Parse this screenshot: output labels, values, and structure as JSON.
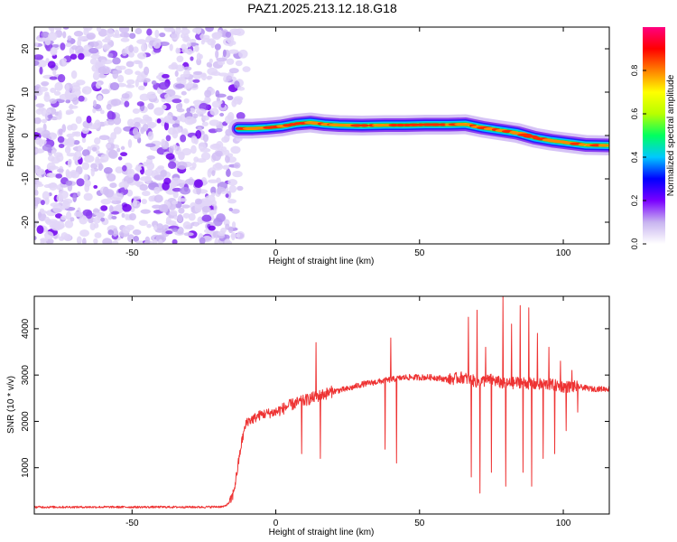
{
  "title": "PAZ1.2025.213.12.18.G18",
  "chart_data": [
    {
      "type": "heatmap",
      "xlabel": "Height of straight line (km)",
      "ylabel": "Frequency (Hz)",
      "xlim": [
        -84,
        116
      ],
      "ylim": [
        -25,
        25
      ],
      "xticks": [
        -50,
        0,
        50,
        100
      ],
      "yticks": [
        -20,
        -10,
        0,
        10,
        20
      ],
      "grid": false,
      "noise_region_x": [
        -84,
        -14
      ],
      "ridge": {
        "x": [
          -13,
          -8,
          -3,
          2,
          7,
          12,
          17,
          22,
          30,
          38,
          45,
          52,
          60,
          66,
          72,
          78,
          84,
          90,
          96,
          102,
          108,
          116
        ],
        "frequency": [
          1.6,
          1.6,
          1.8,
          2.1,
          2.7,
          3.0,
          2.6,
          2.4,
          2.3,
          2.4,
          2.4,
          2.5,
          2.5,
          2.6,
          1.8,
          1.2,
          0.6,
          -0.5,
          -1.2,
          -1.7,
          -2.2,
          -2.3
        ]
      },
      "colorbar": {
        "label": "Normalized spectral amplitude",
        "range": [
          0,
          1
        ],
        "ticks": [
          "0.0",
          "0.2",
          "0.4",
          "0.6",
          "0.8"
        ],
        "colors": [
          "#ffffff",
          "#c8b4f0",
          "#7a00ff",
          "#0000ff",
          "#00c8ff",
          "#00ff60",
          "#b8ff00",
          "#ffff00",
          "#ff8000",
          "#ff0000",
          "#ff0080"
        ]
      }
    },
    {
      "type": "line",
      "xlabel": "Height of straight line (km)",
      "ylabel": "SNR (10 * v/v)",
      "xlim": [
        -84,
        116
      ],
      "ylim": [
        0,
        4700
      ],
      "xticks": [
        -50,
        0,
        50,
        100
      ],
      "yticks": [
        1000,
        2000,
        3000,
        4000
      ],
      "grid": false,
      "color": "#ee3333",
      "x": [
        -84,
        -60,
        -40,
        -25,
        -18,
        -16,
        -15,
        -14,
        -13,
        -12,
        -11,
        -10,
        -8,
        -5,
        0,
        5,
        10,
        15,
        20,
        25,
        30,
        35,
        40,
        45,
        50,
        55,
        60,
        65,
        70,
        75,
        80,
        85,
        90,
        95,
        100,
        105,
        110,
        116
      ],
      "y": [
        150,
        150,
        150,
        150,
        160,
        250,
        400,
        700,
        1100,
        1500,
        1800,
        2000,
        2050,
        2150,
        2200,
        2350,
        2450,
        2550,
        2650,
        2700,
        2800,
        2850,
        2900,
        2950,
        2950,
        2950,
        2900,
        2950,
        2850,
        2900,
        2800,
        2850,
        2800,
        2800,
        2750,
        2750,
        2700,
        2700
      ],
      "spikes": [
        {
          "x": 9,
          "y": 1300
        },
        {
          "x": 14,
          "y": 3700
        },
        {
          "x": 15.5,
          "y": 1200
        },
        {
          "x": 38,
          "y": 1400
        },
        {
          "x": 40,
          "y": 3800
        },
        {
          "x": 42,
          "y": 1100
        },
        {
          "x": 67,
          "y": 4250
        },
        {
          "x": 68,
          "y": 800
        },
        {
          "x": 70,
          "y": 4400
        },
        {
          "x": 71,
          "y": 450
        },
        {
          "x": 73,
          "y": 3600
        },
        {
          "x": 75,
          "y": 900
        },
        {
          "x": 79,
          "y": 4700
        },
        {
          "x": 80,
          "y": 600
        },
        {
          "x": 82,
          "y": 4100
        },
        {
          "x": 85,
          "y": 4500
        },
        {
          "x": 86,
          "y": 900
        },
        {
          "x": 88,
          "y": 4450
        },
        {
          "x": 89,
          "y": 600
        },
        {
          "x": 91,
          "y": 3900
        },
        {
          "x": 93,
          "y": 1200
        },
        {
          "x": 95,
          "y": 3600
        },
        {
          "x": 97,
          "y": 1300
        },
        {
          "x": 99,
          "y": 3300
        },
        {
          "x": 101,
          "y": 1800
        },
        {
          "x": 103,
          "y": 3100
        },
        {
          "x": 105,
          "y": 2200
        }
      ]
    }
  ]
}
